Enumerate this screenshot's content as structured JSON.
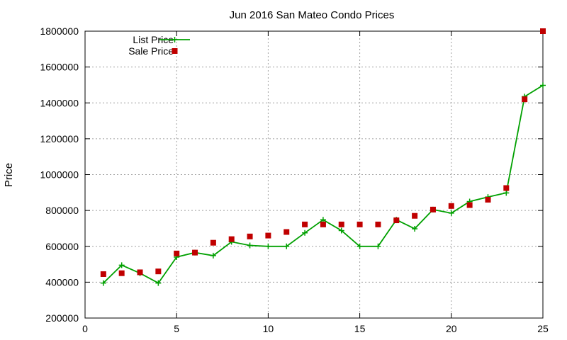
{
  "chart_data": {
    "type": "line",
    "title": "Jun 2016 San Mateo Condo Prices",
    "xlabel": "",
    "ylabel": "Price",
    "xlim": [
      0,
      25
    ],
    "ylim": [
      200000,
      1800000
    ],
    "grid": true,
    "legend_position": "top-left",
    "x_ticks": [
      "0",
      "5",
      "10",
      "15",
      "20",
      "25"
    ],
    "y_ticks": [
      "200000",
      "400000",
      "600000",
      "800000",
      "1000000",
      "1200000",
      "1400000",
      "1600000",
      "1800000"
    ],
    "x": [
      1,
      2,
      3,
      4,
      5,
      6,
      7,
      8,
      9,
      10,
      11,
      12,
      13,
      14,
      15,
      16,
      17,
      18,
      19,
      20,
      21,
      22,
      23,
      24,
      25
    ],
    "series": [
      {
        "name": "List Price",
        "style": "line-plus",
        "color": "#00a000",
        "values": [
          395000,
          495000,
          450000,
          395000,
          540000,
          565000,
          548000,
          625000,
          605000,
          600000,
          600000,
          675000,
          748000,
          688000,
          600000,
          600000,
          748000,
          698000,
          805000,
          785000,
          850000,
          875000,
          898000,
          1435000,
          1498000
        ]
      },
      {
        "name": "Sale Price",
        "style": "square-marker",
        "color": "#c00000",
        "values": [
          445000,
          450000,
          455000,
          460000,
          560000,
          565000,
          620000,
          640000,
          655000,
          660000,
          680000,
          722000,
          722000,
          722000,
          722000,
          722000,
          745000,
          770000,
          805000,
          825000,
          830000,
          860000,
          925000,
          1420000,
          1800000
        ]
      }
    ]
  }
}
